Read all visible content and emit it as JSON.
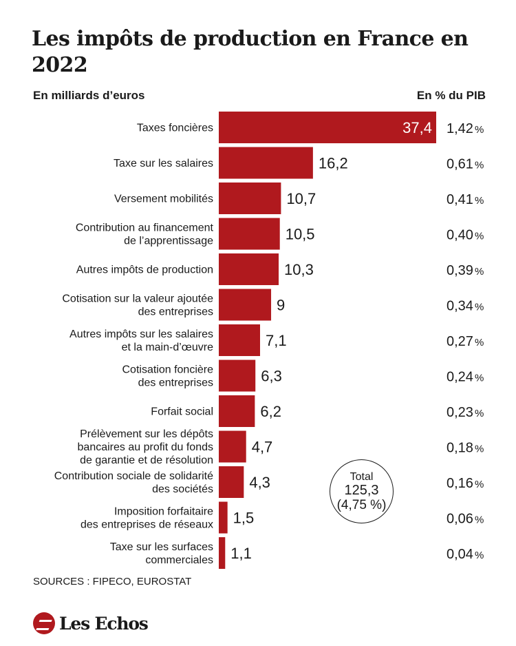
{
  "header": {
    "title": "Les impôts de production en France en 2022",
    "left_subtitle": "En milliards d’euros",
    "right_subtitle": "En % du PIB"
  },
  "chart_data": {
    "type": "bar",
    "orientation": "horizontal",
    "categories": [
      "Taxes foncières",
      "Taxe sur les salaires",
      "Versement mobilités",
      "Contribution au financement de l’apprentissage",
      "Autres impôts de production",
      "Cotisation sur la valeur ajoutée des entreprises",
      "Autres impôts sur les salaires et la main-d’œuvre",
      "Cotisation foncière des entreprises",
      "Forfait social",
      "Prélèvement sur les dépôts bancaires au profit du fonds de garantie et de résolution",
      "Contribution sociale de solidarité des sociétés",
      "Imposition forfaitaire des entreprises de réseaux",
      "Taxe sur les surfaces commerciales"
    ],
    "category_lines": [
      [
        "Taxes foncières"
      ],
      [
        "Taxe sur les salaires"
      ],
      [
        "Versement mobilités"
      ],
      [
        "Contribution au financement",
        "de l’apprentissage"
      ],
      [
        "Autres impôts de production"
      ],
      [
        "Cotisation sur la valeur ajoutée",
        "des entreprises"
      ],
      [
        "Autres impôts sur les salaires",
        "et la main-d’œuvre"
      ],
      [
        "Cotisation foncière",
        "des entreprises"
      ],
      [
        "Forfait social"
      ],
      [
        "Prélèvement sur les dépôts",
        "bancaires au profit du fonds",
        "de garantie et de résolution"
      ],
      [
        "Contribution sociale de solidarité",
        "des sociétés"
      ],
      [
        "Imposition forfaitaire",
        "des entreprises de réseaux"
      ],
      [
        "Taxe sur les surfaces",
        "commerciales"
      ]
    ],
    "series": [
      {
        "values": [
          37.4,
          16.2,
          10.7,
          10.5,
          10.3,
          9,
          7.1,
          6.3,
          6.2,
          4.7,
          4.3,
          1.5,
          1.1
        ],
        "labels": [
          "37,4",
          "16,2",
          "10,7",
          "10,5",
          "10,3",
          "9",
          "7,1",
          "6,3",
          "6,2",
          "4,7",
          "4,3",
          "1,5",
          "1,1"
        ]
      }
    ],
    "pct_gdp": [
      1.42,
      0.61,
      0.41,
      0.4,
      0.39,
      0.34,
      0.27,
      0.24,
      0.23,
      0.18,
      0.16,
      0.06,
      0.04
    ],
    "pct_gdp_labels": [
      "1,42",
      "0,61",
      "0,41",
      "0,40",
      "0,39",
      "0,34",
      "0,27",
      "0,24",
      "0,23",
      "0,18",
      "0,16",
      "0,06",
      "0,04"
    ],
    "pct_symbol": "%",
    "xlim": [
      0,
      37.4
    ],
    "grid": false,
    "bar_color": "#b0191e",
    "total": {
      "label": "Total",
      "value": "125,3",
      "pct": "(4,75 %)"
    }
  },
  "footer": {
    "sources": "SOURCES : FIPECO, EUROSTAT",
    "logo_text": "Les Echos"
  }
}
